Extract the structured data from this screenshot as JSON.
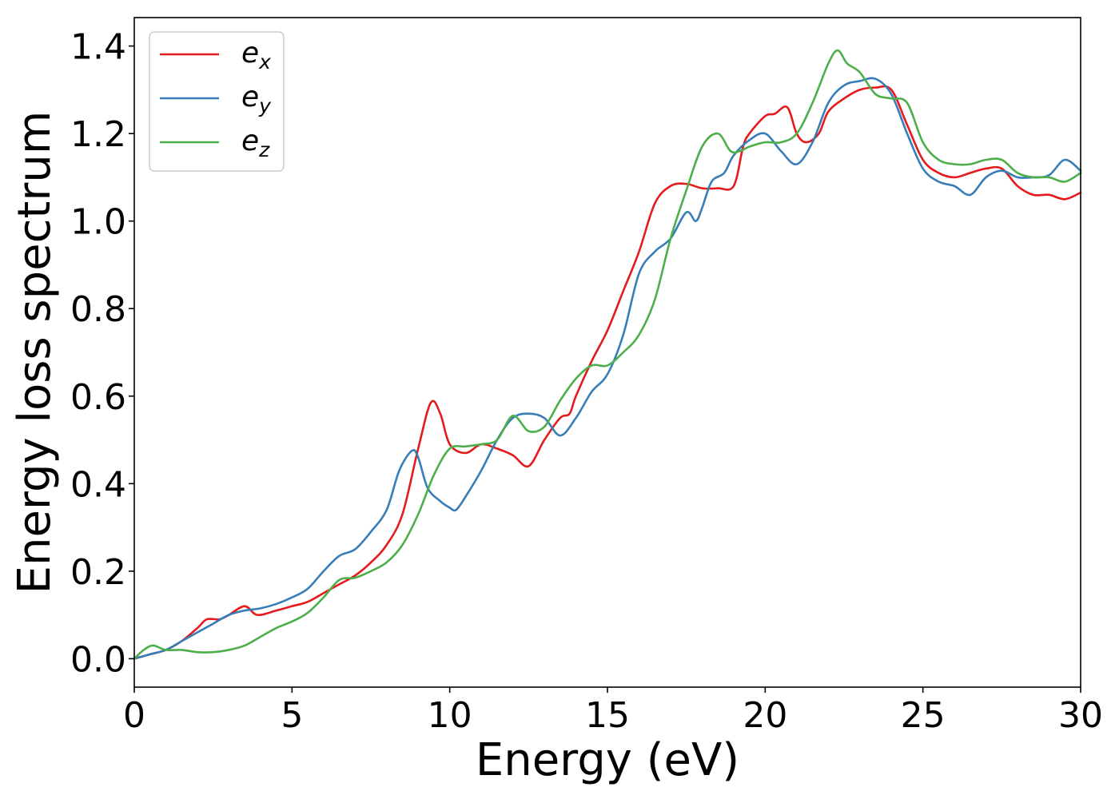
{
  "chart_data": {
    "type": "line",
    "xlabel": "Energy (eV)",
    "ylabel": "Energy loss spectrum",
    "xlim": [
      0,
      30
    ],
    "ylim": [
      -0.065,
      1.465
    ],
    "xticks": [
      0,
      5,
      10,
      15,
      20,
      25,
      30
    ],
    "xtick_labels": [
      "0",
      "5",
      "10",
      "15",
      "20",
      "25",
      "30"
    ],
    "yticks": [
      0.0,
      0.2,
      0.4,
      0.6,
      0.8,
      1.0,
      1.2,
      1.4
    ],
    "ytick_labels": [
      "0.0",
      "0.2",
      "0.4",
      "0.6",
      "0.8",
      "1.0",
      "1.2",
      "1.4"
    ],
    "grid": false,
    "legend_position": "top-left",
    "series": [
      {
        "name": "e_x",
        "legend_main": "e",
        "legend_sub": "x",
        "color": "#e41a1c",
        "x": [
          0,
          0.5,
          1.0,
          1.5,
          2.0,
          2.3,
          2.7,
          3.0,
          3.5,
          3.9,
          4.5,
          5.0,
          5.5,
          6.0,
          6.5,
          7.0,
          7.5,
          8.0,
          8.5,
          9.0,
          9.4,
          9.7,
          10.0,
          10.5,
          11.0,
          11.5,
          12.0,
          12.5,
          13.0,
          13.5,
          13.8,
          14.0,
          14.5,
          15.0,
          15.5,
          16.0,
          16.5,
          17.0,
          17.5,
          18.0,
          18.5,
          19.0,
          19.3,
          19.5,
          20.0,
          20.3,
          20.7,
          21.0,
          21.3,
          21.7,
          22.0,
          22.5,
          23.0,
          23.5,
          24.0,
          24.5,
          25.0,
          25.5,
          26.0,
          26.5,
          27.0,
          27.5,
          28.0,
          28.5,
          29.0,
          29.5,
          30.0
        ],
        "y": [
          0.0,
          0.01,
          0.02,
          0.04,
          0.07,
          0.09,
          0.09,
          0.1,
          0.12,
          0.1,
          0.11,
          0.12,
          0.13,
          0.15,
          0.17,
          0.19,
          0.22,
          0.26,
          0.33,
          0.48,
          0.585,
          0.56,
          0.49,
          0.47,
          0.49,
          0.48,
          0.465,
          0.44,
          0.5,
          0.55,
          0.56,
          0.6,
          0.68,
          0.75,
          0.84,
          0.93,
          1.04,
          1.08,
          1.085,
          1.075,
          1.075,
          1.08,
          1.17,
          1.2,
          1.24,
          1.245,
          1.26,
          1.2,
          1.18,
          1.2,
          1.25,
          1.28,
          1.3,
          1.305,
          1.3,
          1.22,
          1.14,
          1.11,
          1.1,
          1.11,
          1.12,
          1.12,
          1.08,
          1.06,
          1.06,
          1.05,
          1.065
        ]
      },
      {
        "name": "e_y",
        "legend_main": "e",
        "legend_sub": "y",
        "color": "#377eb8",
        "x": [
          0,
          0.5,
          1.0,
          1.5,
          2.0,
          2.5,
          3.0,
          3.5,
          4.0,
          4.5,
          5.0,
          5.5,
          6.0,
          6.5,
          7.0,
          7.5,
          8.0,
          8.4,
          8.8,
          9.0,
          9.3,
          9.7,
          10.0,
          10.2,
          10.5,
          11.0,
          11.5,
          12.0,
          12.5,
          13.0,
          13.5,
          14.0,
          14.5,
          15.0,
          15.5,
          16.0,
          16.5,
          17.0,
          17.5,
          17.8,
          18.0,
          18.3,
          18.7,
          19.0,
          19.5,
          20.0,
          20.5,
          21.0,
          21.5,
          22.0,
          22.5,
          23.0,
          23.5,
          24.0,
          24.5,
          25.0,
          25.5,
          26.0,
          26.5,
          27.0,
          27.5,
          28.0,
          28.5,
          29.0,
          29.5,
          30.0
        ],
        "y": [
          0.0,
          0.01,
          0.02,
          0.04,
          0.06,
          0.08,
          0.1,
          0.11,
          0.115,
          0.125,
          0.14,
          0.16,
          0.2,
          0.235,
          0.25,
          0.29,
          0.34,
          0.43,
          0.475,
          0.46,
          0.39,
          0.36,
          0.345,
          0.34,
          0.37,
          0.43,
          0.5,
          0.55,
          0.56,
          0.55,
          0.51,
          0.55,
          0.61,
          0.65,
          0.74,
          0.88,
          0.93,
          0.96,
          1.02,
          1.0,
          1.03,
          1.09,
          1.11,
          1.15,
          1.185,
          1.2,
          1.16,
          1.13,
          1.18,
          1.27,
          1.31,
          1.32,
          1.325,
          1.29,
          1.2,
          1.12,
          1.09,
          1.08,
          1.06,
          1.1,
          1.115,
          1.1,
          1.1,
          1.105,
          1.14,
          1.115
        ]
      },
      {
        "name": "e_z",
        "legend_main": "e",
        "legend_sub": "z",
        "color": "#4daf4a",
        "x": [
          0,
          0.3,
          0.6,
          1.0,
          1.5,
          2.0,
          2.5,
          3.0,
          3.5,
          4.0,
          4.5,
          5.0,
          5.5,
          6.0,
          6.5,
          7.0,
          7.5,
          8.0,
          8.5,
          9.0,
          9.5,
          10.0,
          10.5,
          11.0,
          11.5,
          12.0,
          12.5,
          13.0,
          13.5,
          14.0,
          14.5,
          15.0,
          15.5,
          16.0,
          16.5,
          17.0,
          17.5,
          18.0,
          18.5,
          18.9,
          19.2,
          19.5,
          20.0,
          20.5,
          21.0,
          21.5,
          22.0,
          22.3,
          22.6,
          23.0,
          23.5,
          24.0,
          24.5,
          25.0,
          25.5,
          26.0,
          26.5,
          27.0,
          27.5,
          28.0,
          28.5,
          29.0,
          29.5,
          30.0
        ],
        "y": [
          0.0,
          0.02,
          0.03,
          0.02,
          0.02,
          0.015,
          0.015,
          0.02,
          0.03,
          0.05,
          0.07,
          0.085,
          0.105,
          0.14,
          0.18,
          0.185,
          0.2,
          0.22,
          0.26,
          0.33,
          0.42,
          0.48,
          0.485,
          0.49,
          0.5,
          0.555,
          0.52,
          0.53,
          0.59,
          0.64,
          0.67,
          0.67,
          0.7,
          0.74,
          0.82,
          0.96,
          1.07,
          1.17,
          1.2,
          1.16,
          1.16,
          1.17,
          1.18,
          1.18,
          1.2,
          1.27,
          1.36,
          1.39,
          1.36,
          1.34,
          1.29,
          1.28,
          1.27,
          1.18,
          1.14,
          1.13,
          1.13,
          1.14,
          1.14,
          1.11,
          1.1,
          1.1,
          1.09,
          1.11
        ]
      }
    ]
  }
}
